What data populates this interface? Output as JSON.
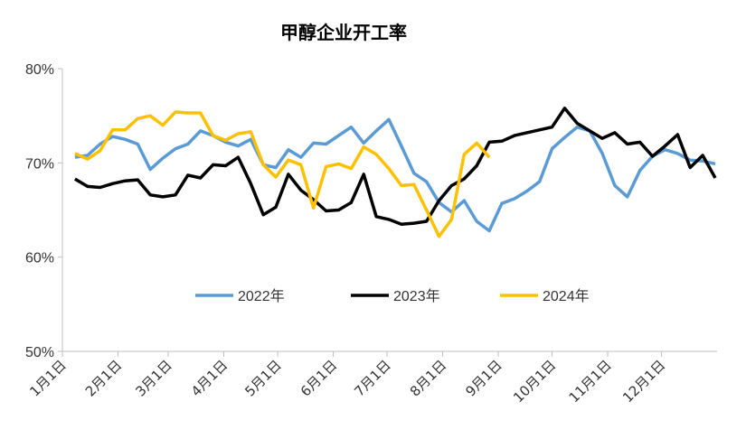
{
  "chart_data": {
    "type": "line",
    "title": "甲醇企业开工率",
    "xlabel": "",
    "ylabel": "",
    "ylim": [
      50,
      80
    ],
    "yticks": [
      "50%",
      "60%",
      "70%",
      "80%"
    ],
    "ytick_values": [
      50,
      60,
      70,
      80
    ],
    "xtick_labels": [
      "1月1日",
      "2月1日",
      "3月1日",
      "4月1日",
      "5月1日",
      "6月1日",
      "7月1日",
      "8月1日",
      "9月1日",
      "10月1日",
      "11月1日",
      "12月1日"
    ],
    "xtick_days": [
      0,
      31,
      59,
      90,
      120,
      151,
      181,
      212,
      243,
      273,
      304,
      334
    ],
    "x_unit": "day of year",
    "x_range": [
      0,
      365
    ],
    "grid": false,
    "legend_position": "bottom-center",
    "series": [
      {
        "name": "2022年",
        "color": "#5b9bd5",
        "points": [
          [
            7,
            70.6
          ],
          [
            14,
            70.8
          ],
          [
            21,
            72.0
          ],
          [
            28,
            72.8
          ],
          [
            35,
            72.5
          ],
          [
            42,
            72.0
          ],
          [
            49,
            69.3
          ],
          [
            56,
            70.5
          ],
          [
            63,
            71.5
          ],
          [
            70,
            72.0
          ],
          [
            77,
            73.4
          ],
          [
            84,
            72.9
          ],
          [
            91,
            72.2
          ],
          [
            98,
            71.8
          ],
          [
            105,
            72.5
          ],
          [
            112,
            69.8
          ],
          [
            119,
            69.5
          ],
          [
            126,
            71.4
          ],
          [
            133,
            70.6
          ],
          [
            140,
            72.1
          ],
          [
            147,
            72.0
          ],
          [
            154,
            72.9
          ],
          [
            161,
            73.8
          ],
          [
            168,
            72.1
          ],
          [
            175,
            73.4
          ],
          [
            182,
            74.6
          ],
          [
            189,
            71.8
          ],
          [
            196,
            68.9
          ],
          [
            203,
            68.0
          ],
          [
            210,
            65.8
          ],
          [
            217,
            64.8
          ],
          [
            224,
            66.0
          ],
          [
            231,
            63.8
          ],
          [
            238,
            62.8
          ],
          [
            245,
            65.7
          ],
          [
            252,
            66.2
          ],
          [
            259,
            67.0
          ],
          [
            266,
            68.0
          ],
          [
            273,
            71.5
          ],
          [
            280,
            72.7
          ],
          [
            287,
            73.8
          ],
          [
            294,
            73.4
          ],
          [
            301,
            71.0
          ],
          [
            308,
            67.6
          ],
          [
            315,
            66.4
          ],
          [
            322,
            69.2
          ],
          [
            329,
            70.7
          ],
          [
            336,
            71.4
          ],
          [
            343,
            71.0
          ],
          [
            350,
            70.3
          ],
          [
            357,
            70.2
          ],
          [
            364,
            69.9
          ]
        ]
      },
      {
        "name": "2023年",
        "color": "#000000",
        "points": [
          [
            7,
            68.3
          ],
          [
            14,
            67.5
          ],
          [
            21,
            67.4
          ],
          [
            28,
            67.8
          ],
          [
            35,
            68.1
          ],
          [
            42,
            68.2
          ],
          [
            49,
            66.6
          ],
          [
            56,
            66.4
          ],
          [
            63,
            66.6
          ],
          [
            70,
            68.7
          ],
          [
            77,
            68.4
          ],
          [
            84,
            69.8
          ],
          [
            91,
            69.7
          ],
          [
            98,
            70.6
          ],
          [
            105,
            67.8
          ],
          [
            112,
            64.5
          ],
          [
            119,
            65.3
          ],
          [
            126,
            68.8
          ],
          [
            133,
            67.1
          ],
          [
            140,
            66.1
          ],
          [
            147,
            64.9
          ],
          [
            154,
            65.0
          ],
          [
            161,
            65.8
          ],
          [
            168,
            68.8
          ],
          [
            175,
            64.3
          ],
          [
            182,
            64.0
          ],
          [
            189,
            63.5
          ],
          [
            196,
            63.6
          ],
          [
            203,
            63.8
          ],
          [
            210,
            66.0
          ],
          [
            217,
            67.6
          ],
          [
            224,
            68.3
          ],
          [
            231,
            69.7
          ],
          [
            238,
            72.2
          ],
          [
            245,
            72.3
          ],
          [
            252,
            72.9
          ],
          [
            259,
            73.2
          ],
          [
            266,
            73.5
          ],
          [
            273,
            73.8
          ],
          [
            280,
            75.8
          ],
          [
            287,
            74.2
          ],
          [
            294,
            73.4
          ],
          [
            301,
            72.6
          ],
          [
            308,
            73.2
          ],
          [
            315,
            72.0
          ],
          [
            322,
            72.2
          ],
          [
            329,
            70.7
          ],
          [
            336,
            71.8
          ],
          [
            343,
            73.0
          ],
          [
            350,
            69.5
          ],
          [
            357,
            70.8
          ],
          [
            364,
            68.4
          ]
        ]
      },
      {
        "name": "2024年",
        "color": "#ffc000",
        "points": [
          [
            7,
            71.0
          ],
          [
            14,
            70.4
          ],
          [
            21,
            71.3
          ],
          [
            28,
            73.5
          ],
          [
            35,
            73.5
          ],
          [
            42,
            74.7
          ],
          [
            49,
            75.0
          ],
          [
            56,
            74.0
          ],
          [
            63,
            75.4
          ],
          [
            70,
            75.3
          ],
          [
            77,
            75.3
          ],
          [
            84,
            72.9
          ],
          [
            91,
            72.4
          ],
          [
            98,
            73.1
          ],
          [
            105,
            73.3
          ],
          [
            112,
            69.8
          ],
          [
            119,
            68.5
          ],
          [
            126,
            70.3
          ],
          [
            133,
            69.8
          ],
          [
            140,
            65.2
          ],
          [
            147,
            69.6
          ],
          [
            154,
            69.9
          ],
          [
            161,
            69.4
          ],
          [
            168,
            71.7
          ],
          [
            175,
            70.9
          ],
          [
            182,
            69.4
          ],
          [
            189,
            67.6
          ],
          [
            196,
            67.7
          ],
          [
            203,
            65.0
          ],
          [
            210,
            62.2
          ],
          [
            217,
            64.0
          ],
          [
            224,
            70.9
          ],
          [
            231,
            72.1
          ],
          [
            238,
            70.6
          ]
        ]
      }
    ]
  }
}
